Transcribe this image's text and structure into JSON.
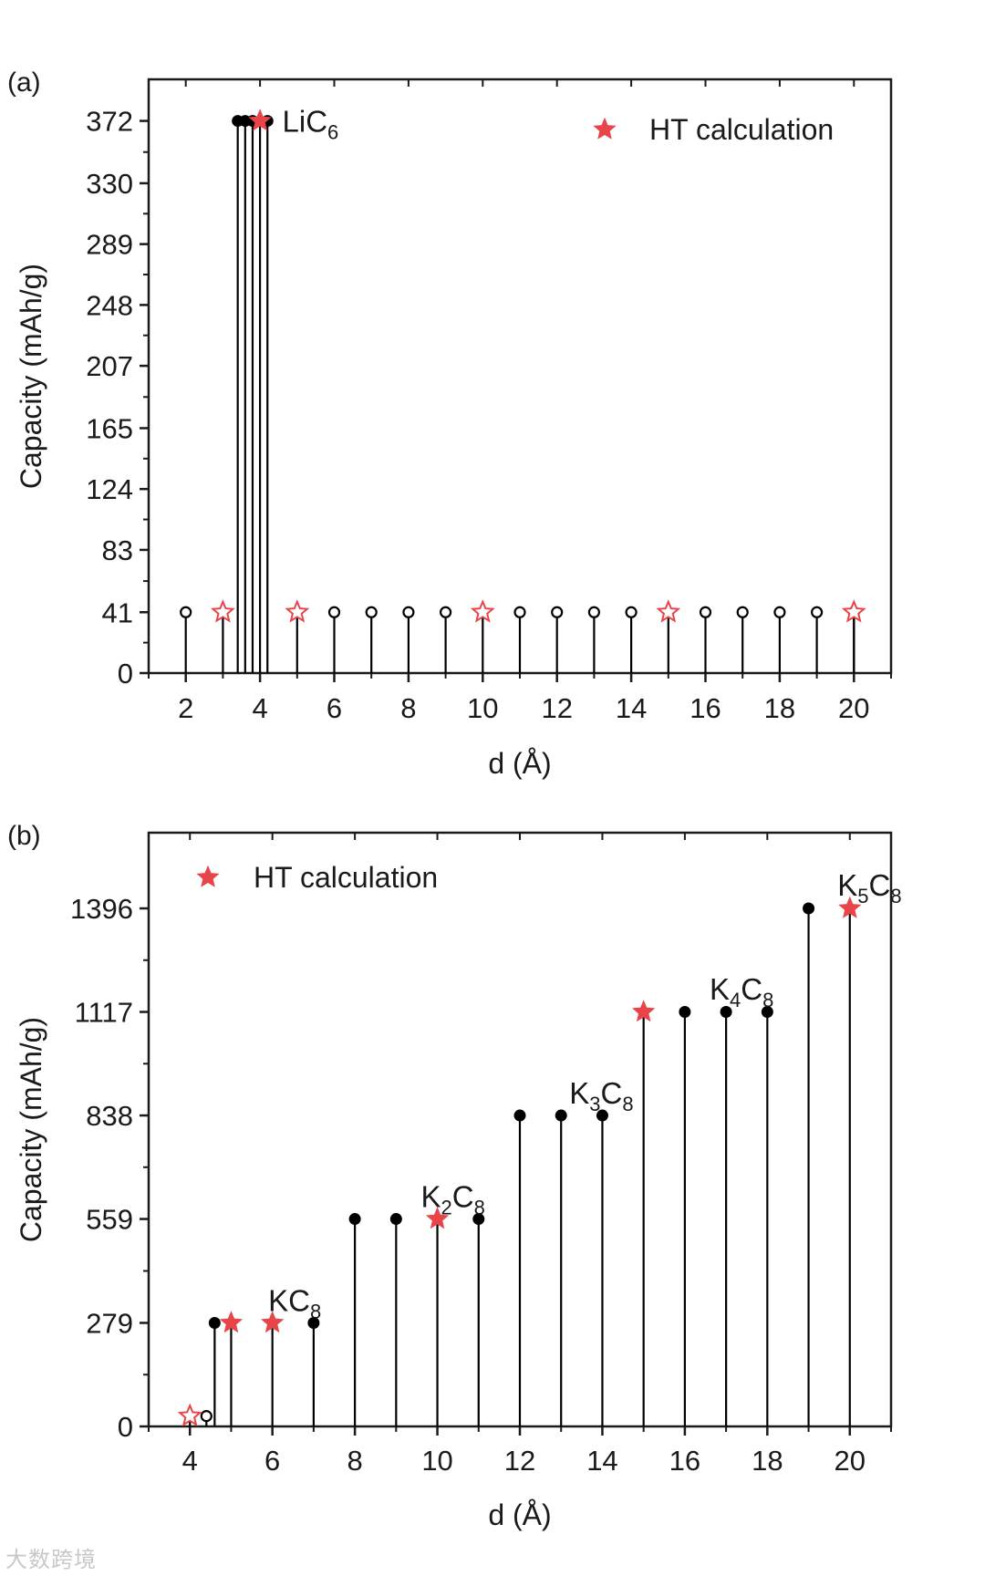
{
  "colors": {
    "axis": "#1a1a1a",
    "star": "#e8454a",
    "marker": "#000000"
  },
  "chart_data": [
    {
      "panel_label": "(a)",
      "type": "stem",
      "xlabel": "d (Å)",
      "ylabel": "Capacity (mAh/g)",
      "xlim": [
        1.0,
        21.0
      ],
      "ylim": [
        0,
        400
      ],
      "x_ticks": [
        2,
        4,
        6,
        8,
        10,
        12,
        14,
        16,
        18,
        20
      ],
      "x_tick_labels": [
        "2",
        "4",
        "6",
        "8",
        "10",
        "12",
        "14",
        "16",
        "18",
        "20"
      ],
      "y_ticks": [
        0,
        41,
        83,
        124,
        165,
        207,
        248,
        289,
        330,
        372
      ],
      "y_tick_labels": [
        "0",
        "41",
        "83",
        "124",
        "165",
        "207",
        "248",
        "289",
        "330",
        "372"
      ],
      "legend": {
        "label": "HT calculation",
        "position": "top-right"
      },
      "series": [
        {
          "name": "filled",
          "marker": "filled-circle",
          "points": [
            [
              3.4,
              372
            ],
            [
              3.6,
              372
            ],
            [
              3.8,
              372
            ],
            [
              4.2,
              372
            ]
          ]
        },
        {
          "name": "open",
          "marker": "open-circle",
          "points": [
            [
              2,
              41
            ],
            [
              6,
              41
            ],
            [
              7,
              41
            ],
            [
              8,
              41
            ],
            [
              9,
              41
            ],
            [
              11,
              41
            ],
            [
              12,
              41
            ],
            [
              13,
              41
            ],
            [
              14,
              41
            ],
            [
              16,
              41
            ],
            [
              17,
              41
            ],
            [
              18,
              41
            ],
            [
              19,
              41
            ],
            [
              20,
              41
            ]
          ]
        },
        {
          "name": "HT calculation",
          "marker": "filled-star",
          "points": [
            [
              4,
              372
            ]
          ]
        },
        {
          "name": "HT calculation (open)",
          "marker": "open-star",
          "points": [
            [
              3,
              41
            ],
            [
              5,
              41
            ],
            [
              10,
              41
            ],
            [
              15,
              41
            ],
            [
              20,
              41
            ]
          ]
        }
      ],
      "annotations": [
        {
          "base": "LiC",
          "sub": "6",
          "x": 4.6,
          "y": 372
        }
      ]
    },
    {
      "panel_label": "(b)",
      "type": "stem",
      "xlabel": "d (Å)",
      "ylabel": "Capacity (mAh/g)",
      "xlim": [
        3.0,
        21.0
      ],
      "ylim": [
        0,
        1600
      ],
      "x_ticks": [
        4,
        6,
        8,
        10,
        12,
        14,
        16,
        18,
        20
      ],
      "x_tick_labels": [
        "4",
        "6",
        "8",
        "10",
        "12",
        "14",
        "16",
        "18",
        "20"
      ],
      "y_ticks": [
        0,
        279,
        559,
        838,
        1117,
        1396
      ],
      "y_tick_labels": [
        "0",
        "279",
        "559",
        "838",
        "1117",
        "1396"
      ],
      "legend": {
        "label": "HT calculation",
        "position": "top-left"
      },
      "series": [
        {
          "name": "filled",
          "marker": "filled-circle",
          "points": [
            [
              4.6,
              279
            ],
            [
              7,
              279
            ],
            [
              8,
              559
            ],
            [
              9,
              559
            ],
            [
              11,
              559
            ],
            [
              12,
              838
            ],
            [
              13,
              838
            ],
            [
              14,
              838
            ],
            [
              16,
              1117
            ],
            [
              17,
              1117
            ],
            [
              18,
              1117
            ],
            [
              19,
              1396
            ]
          ]
        },
        {
          "name": "open",
          "marker": "open-circle",
          "points": [
            [
              4.4,
              28
            ]
          ]
        },
        {
          "name": "HT calculation",
          "marker": "filled-star",
          "points": [
            [
              5,
              279
            ],
            [
              6,
              279
            ],
            [
              10,
              559
            ],
            [
              15,
              1117
            ],
            [
              20,
              1396
            ]
          ]
        },
        {
          "name": "HT calculation (open)",
          "marker": "open-star",
          "points": [
            [
              4,
              28
            ]
          ]
        }
      ],
      "annotations": [
        {
          "base": "KC",
          "sub": "8",
          "x": 5.9,
          "y": 340
        },
        {
          "base": "K",
          "sub": "2",
          "base2": "C",
          "sub2": "8",
          "x": 9.6,
          "y": 620
        },
        {
          "base": "K",
          "sub": "3",
          "base2": "C",
          "sub2": "8",
          "x": 13.2,
          "y": 900
        },
        {
          "base": "K",
          "sub": "4",
          "base2": "C",
          "sub2": "8",
          "x": 16.6,
          "y": 1180
        },
        {
          "base": "K",
          "sub": "5",
          "base2": "C",
          "sub2": "8",
          "x": 19.7,
          "y": 1460
        }
      ]
    }
  ],
  "watermark": "大数跨境"
}
